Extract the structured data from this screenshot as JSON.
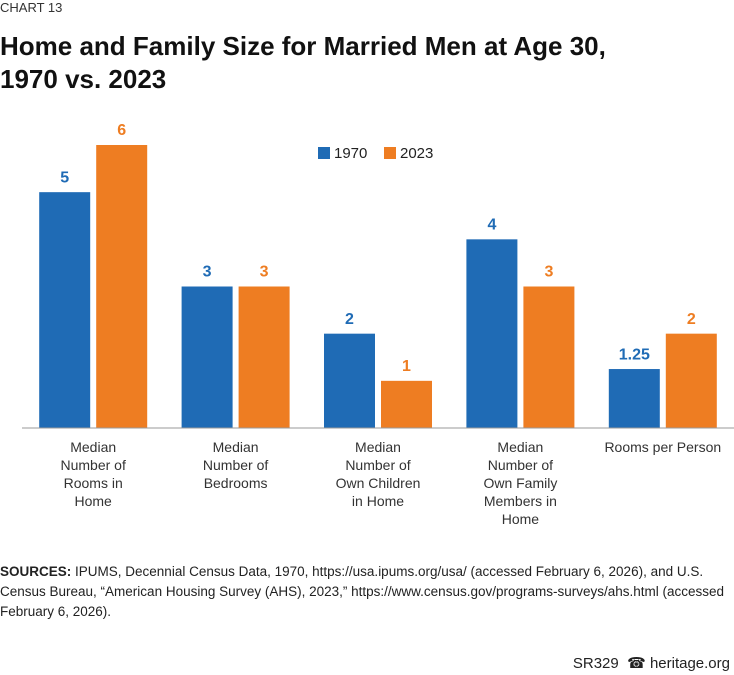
{
  "chart_data": {
    "type": "bar",
    "kicker": "CHART 13",
    "title": "Home and Family Size for Married Men at Age 30, 1970 vs. 2023",
    "categories": [
      "Median Number of Rooms in Home",
      "Median Number of Bedrooms",
      "Median Number of Own Children in Home",
      "Median Number of Own Family Members in Home",
      "Rooms per Person"
    ],
    "series": [
      {
        "name": "1970",
        "color": "#1f6bb5",
        "values": [
          5,
          3,
          2,
          4,
          1.25
        ]
      },
      {
        "name": "2023",
        "color": "#ee7d22",
        "values": [
          6,
          3,
          1,
          3,
          2
        ]
      }
    ],
    "ylim": [
      0,
      6
    ],
    "sources_label": "SOURCES:",
    "sources_text": "IPUMS, Decennial Census Data, 1970, https://usa.ipums.org/usa/ (accessed February 6, 2026), and U.S. Census Bureau, “American Housing Survey (AHS), 2023,” https://www.census.gov/programs-surveys/ahs.html (accessed February 6, 2026).",
    "report_id": "SR329",
    "site": "heritage.org"
  }
}
